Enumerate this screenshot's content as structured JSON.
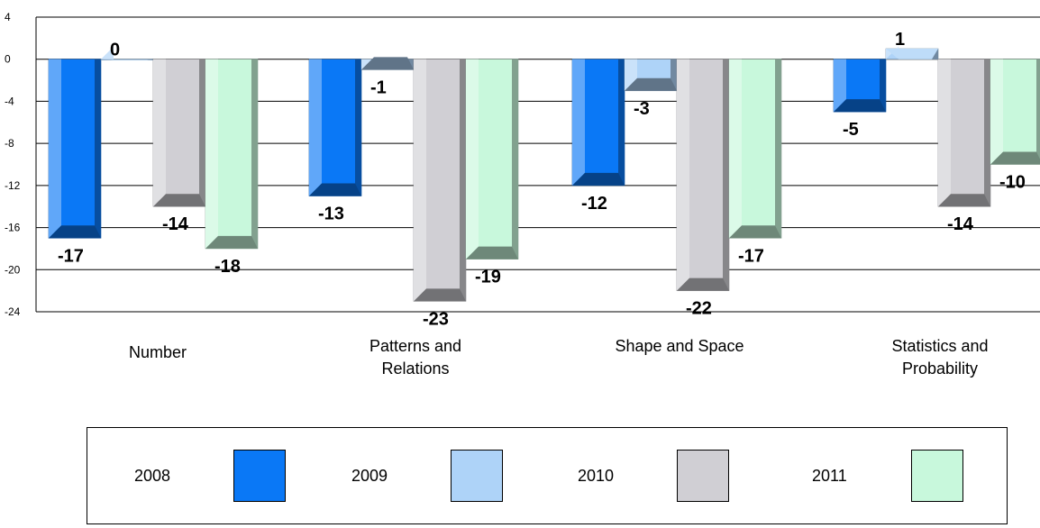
{
  "chart_data": {
    "type": "bar",
    "categories": [
      "Number",
      "Patterns and\nRelations",
      "Shape and Space",
      "Statistics and\nProbability"
    ],
    "series": [
      {
        "name": "2008",
        "values": [
          -17,
          -13,
          -12,
          -5
        ],
        "color": "#0a78f6"
      },
      {
        "name": "2009",
        "values": [
          0,
          -1,
          -3,
          1
        ],
        "color": "#aed3f8"
      },
      {
        "name": "2010",
        "values": [
          -14,
          -23,
          -22,
          -14
        ],
        "color": "#d0cfd4"
      },
      {
        "name": "2011",
        "values": [
          -18,
          -19,
          -17,
          -10
        ],
        "color": "#c8f8dc"
      }
    ],
    "yticks": [
      "4",
      "0",
      "-4",
      "-8",
      "-12",
      "-16",
      "-20",
      "-24"
    ],
    "ylim": [
      -24,
      4
    ],
    "grid": true,
    "legend_position": "bottom",
    "title": "",
    "xlabel": "",
    "ylabel": ""
  }
}
